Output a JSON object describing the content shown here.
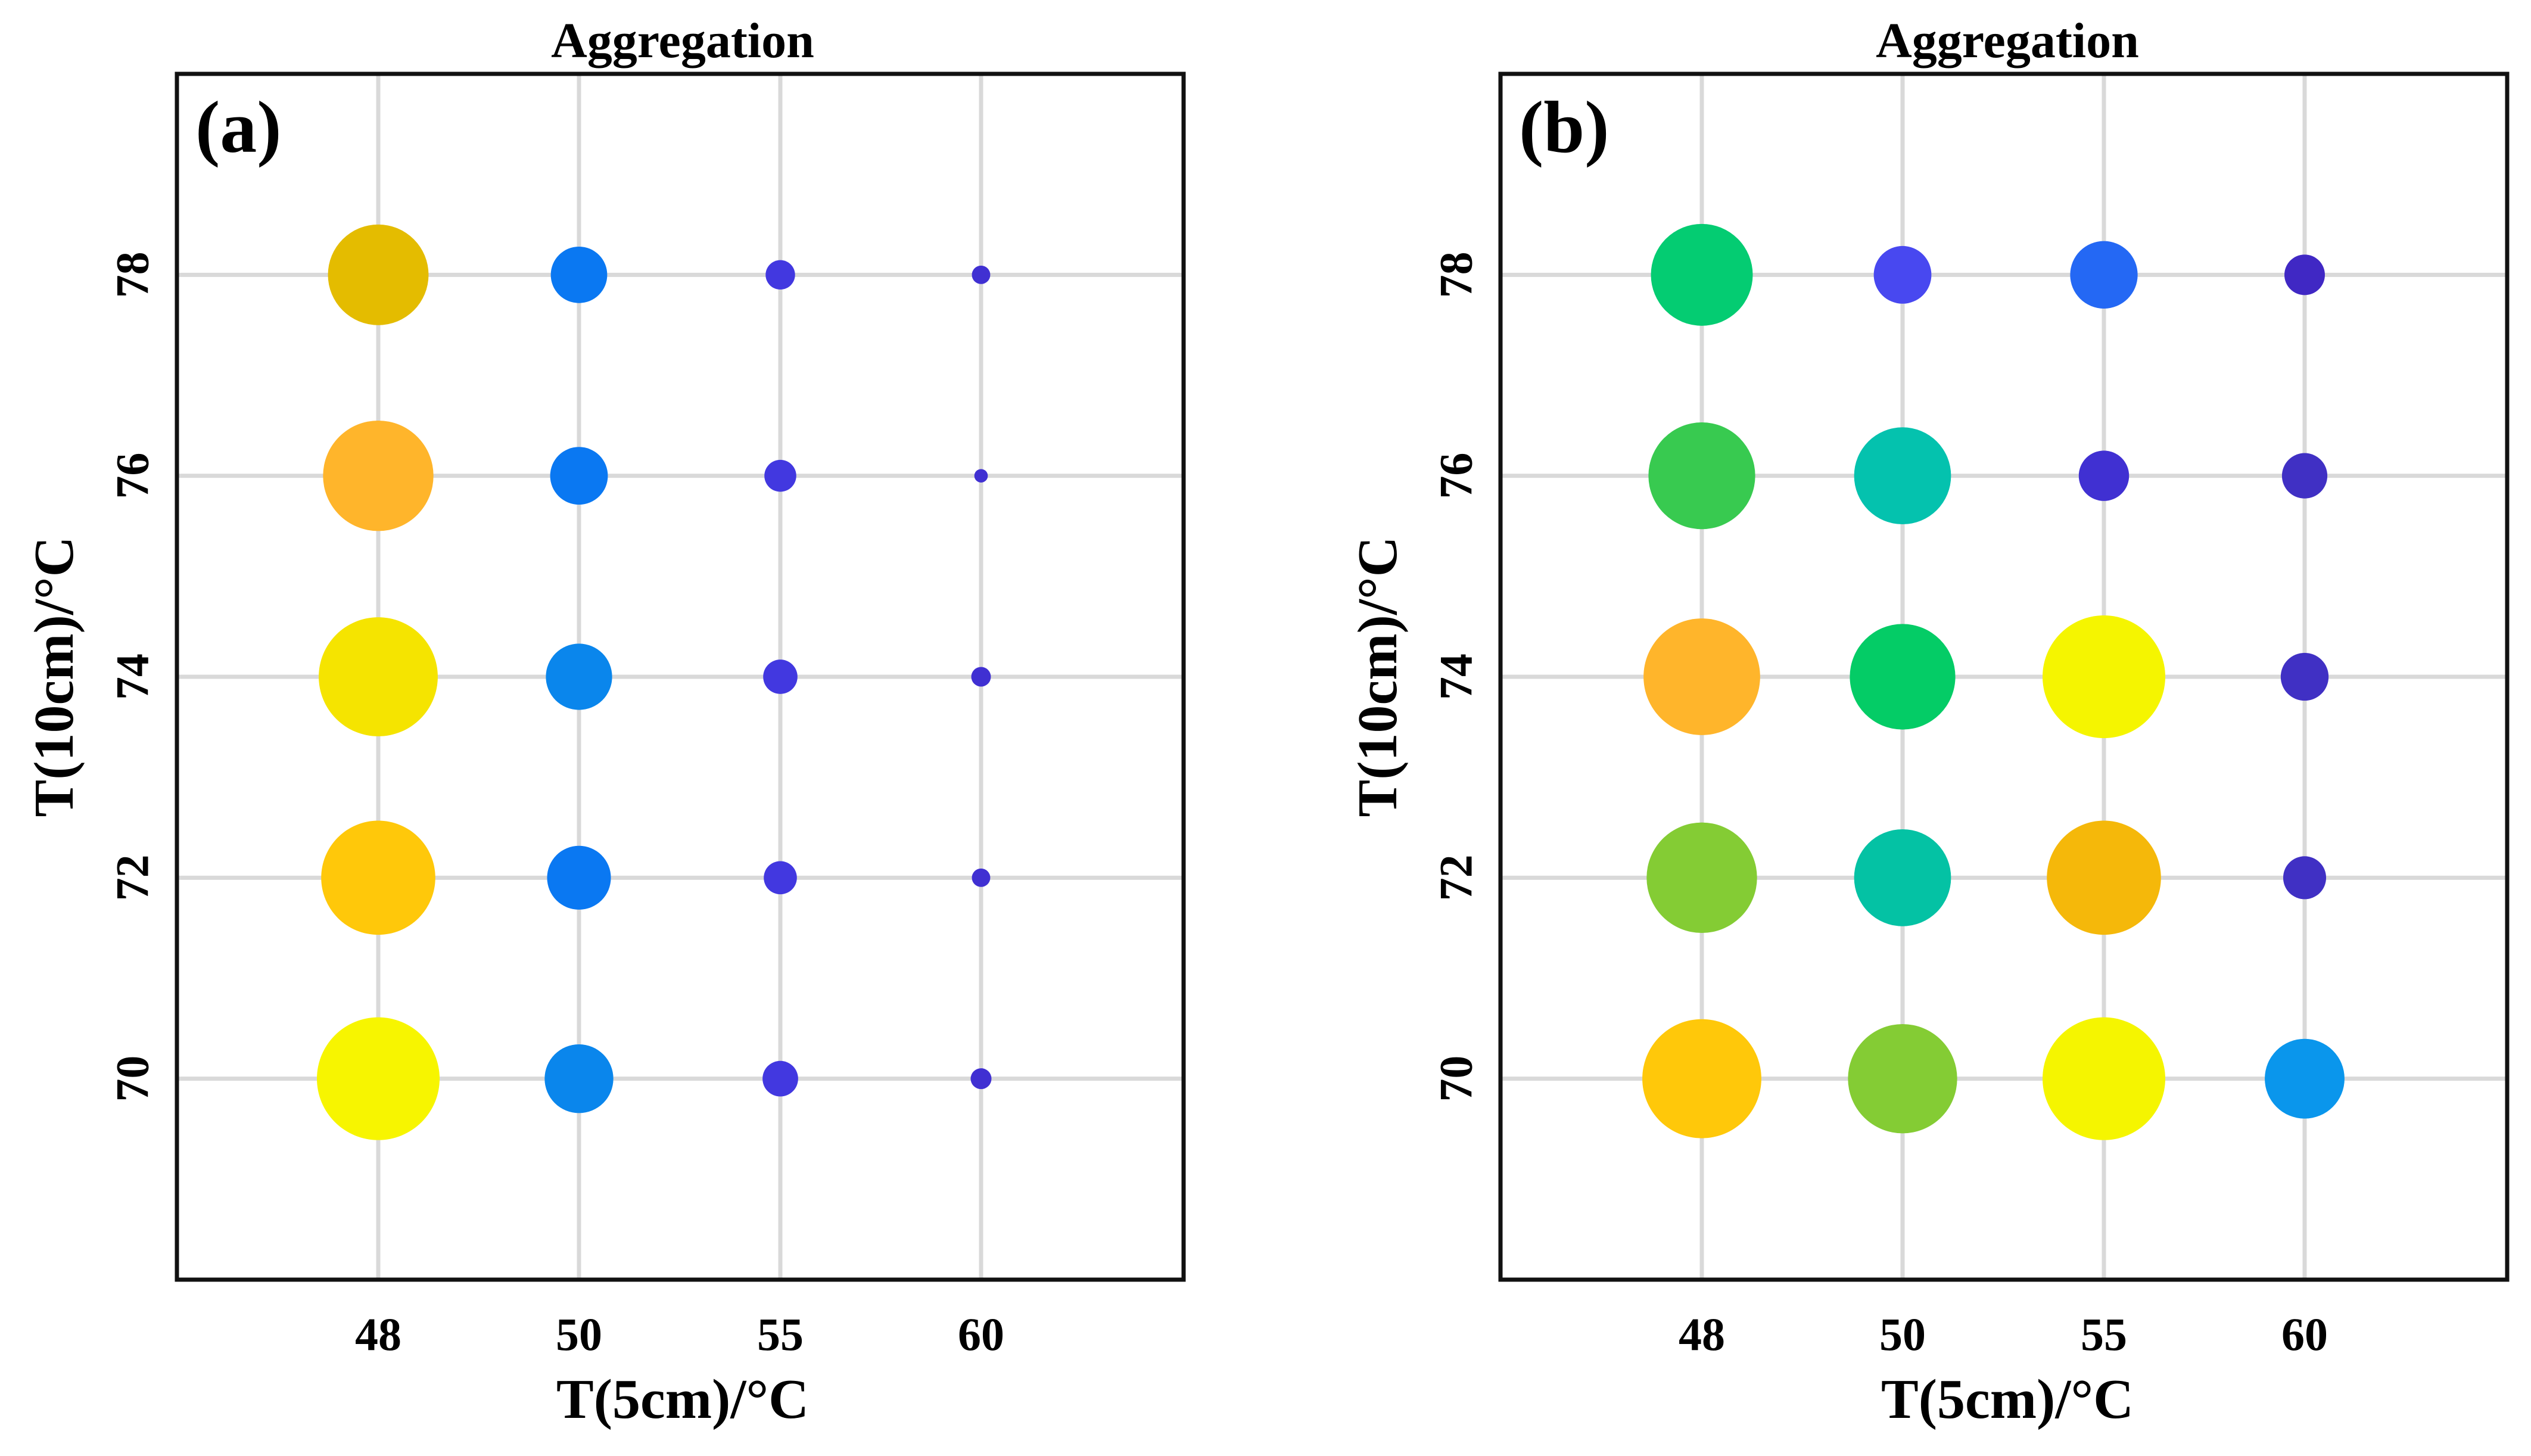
{
  "chart_data": [
    {
      "type": "scatter",
      "title": "Aggregation",
      "panel_label": "(a)",
      "xlabel": "T(5cm)/°C",
      "ylabel": "T(10cm)/°C",
      "x_categories": [
        "48",
        "50",
        "55",
        "60"
      ],
      "y_ticks": [
        "70",
        "72",
        "74",
        "76",
        "78"
      ],
      "ylim": [
        68,
        80
      ],
      "grid": true,
      "points": [
        {
          "x": "48",
          "y": 78,
          "size": 0.82,
          "color": "#E4BC00"
        },
        {
          "x": "50",
          "y": 78,
          "size": 0.46,
          "color": "#0A78F2"
        },
        {
          "x": "55",
          "y": 78,
          "size": 0.24,
          "color": "#4238E0"
        },
        {
          "x": "60",
          "y": 78,
          "size": 0.15,
          "color": "#4030D2"
        },
        {
          "x": "48",
          "y": 76,
          "size": 0.9,
          "color": "#FFB52B"
        },
        {
          "x": "50",
          "y": 76,
          "size": 0.47,
          "color": "#0A78F2"
        },
        {
          "x": "55",
          "y": 76,
          "size": 0.26,
          "color": "#4238E0"
        },
        {
          "x": "60",
          "y": 76,
          "size": 0.11,
          "color": "#4030D2"
        },
        {
          "x": "48",
          "y": 74,
          "size": 0.97,
          "color": "#F5E400"
        },
        {
          "x": "50",
          "y": 74,
          "size": 0.54,
          "color": "#0A86EC"
        },
        {
          "x": "55",
          "y": 74,
          "size": 0.28,
          "color": "#4238E0"
        },
        {
          "x": "60",
          "y": 74,
          "size": 0.16,
          "color": "#4030D2"
        },
        {
          "x": "48",
          "y": 72,
          "size": 0.93,
          "color": "#FFC80A"
        },
        {
          "x": "50",
          "y": 72,
          "size": 0.52,
          "color": "#0A78F2"
        },
        {
          "x": "55",
          "y": 72,
          "size": 0.27,
          "color": "#4238E0"
        },
        {
          "x": "60",
          "y": 72,
          "size": 0.15,
          "color": "#4030D2"
        },
        {
          "x": "48",
          "y": 70,
          "size": 1.0,
          "color": "#F7F500"
        },
        {
          "x": "50",
          "y": 70,
          "size": 0.56,
          "color": "#0A86EC"
        },
        {
          "x": "55",
          "y": 70,
          "size": 0.29,
          "color": "#4238E0"
        },
        {
          "x": "60",
          "y": 70,
          "size": 0.17,
          "color": "#4030D2"
        }
      ]
    },
    {
      "type": "scatter",
      "title": "Aggregation",
      "panel_label": "(b)",
      "xlabel": "T(5cm)/°C",
      "ylabel": "T(10cm)/°C",
      "x_categories": [
        "48",
        "50",
        "55",
        "60"
      ],
      "y_ticks": [
        "70",
        "72",
        "74",
        "76",
        "78"
      ],
      "ylim": [
        68,
        80
      ],
      "grid": true,
      "points": [
        {
          "x": "48",
          "y": 78,
          "size": 0.83,
          "color": "#04CC72"
        },
        {
          "x": "50",
          "y": 78,
          "size": 0.47,
          "color": "#4848F0"
        },
        {
          "x": "55",
          "y": 78,
          "size": 0.55,
          "color": "#2468F4"
        },
        {
          "x": "60",
          "y": 78,
          "size": 0.33,
          "color": "#4028C4"
        },
        {
          "x": "48",
          "y": 76,
          "size": 0.87,
          "color": "#38CA50"
        },
        {
          "x": "50",
          "y": 76,
          "size": 0.79,
          "color": "#04C2AE"
        },
        {
          "x": "55",
          "y": 76,
          "size": 0.41,
          "color": "#4030D2"
        },
        {
          "x": "60",
          "y": 76,
          "size": 0.37,
          "color": "#4030C4"
        },
        {
          "x": "48",
          "y": 74,
          "size": 0.95,
          "color": "#FFB52B"
        },
        {
          "x": "50",
          "y": 74,
          "size": 0.86,
          "color": "#04CC66"
        },
        {
          "x": "55",
          "y": 74,
          "size": 1.0,
          "color": "#F5F500"
        },
        {
          "x": "60",
          "y": 74,
          "size": 0.39,
          "color": "#4030C4"
        },
        {
          "x": "48",
          "y": 72,
          "size": 0.9,
          "color": "#84CC34"
        },
        {
          "x": "50",
          "y": 72,
          "size": 0.79,
          "color": "#04C2A4"
        },
        {
          "x": "55",
          "y": 72,
          "size": 0.93,
          "color": "#F5B80A"
        },
        {
          "x": "60",
          "y": 72,
          "size": 0.35,
          "color": "#4030C4"
        },
        {
          "x": "48",
          "y": 70,
          "size": 0.97,
          "color": "#FFC80A"
        },
        {
          "x": "50",
          "y": 70,
          "size": 0.89,
          "color": "#84CC34"
        },
        {
          "x": "55",
          "y": 70,
          "size": 1.0,
          "color": "#F5F500"
        },
        {
          "x": "60",
          "y": 70,
          "size": 0.65,
          "color": "#0A96EC"
        }
      ]
    }
  ]
}
